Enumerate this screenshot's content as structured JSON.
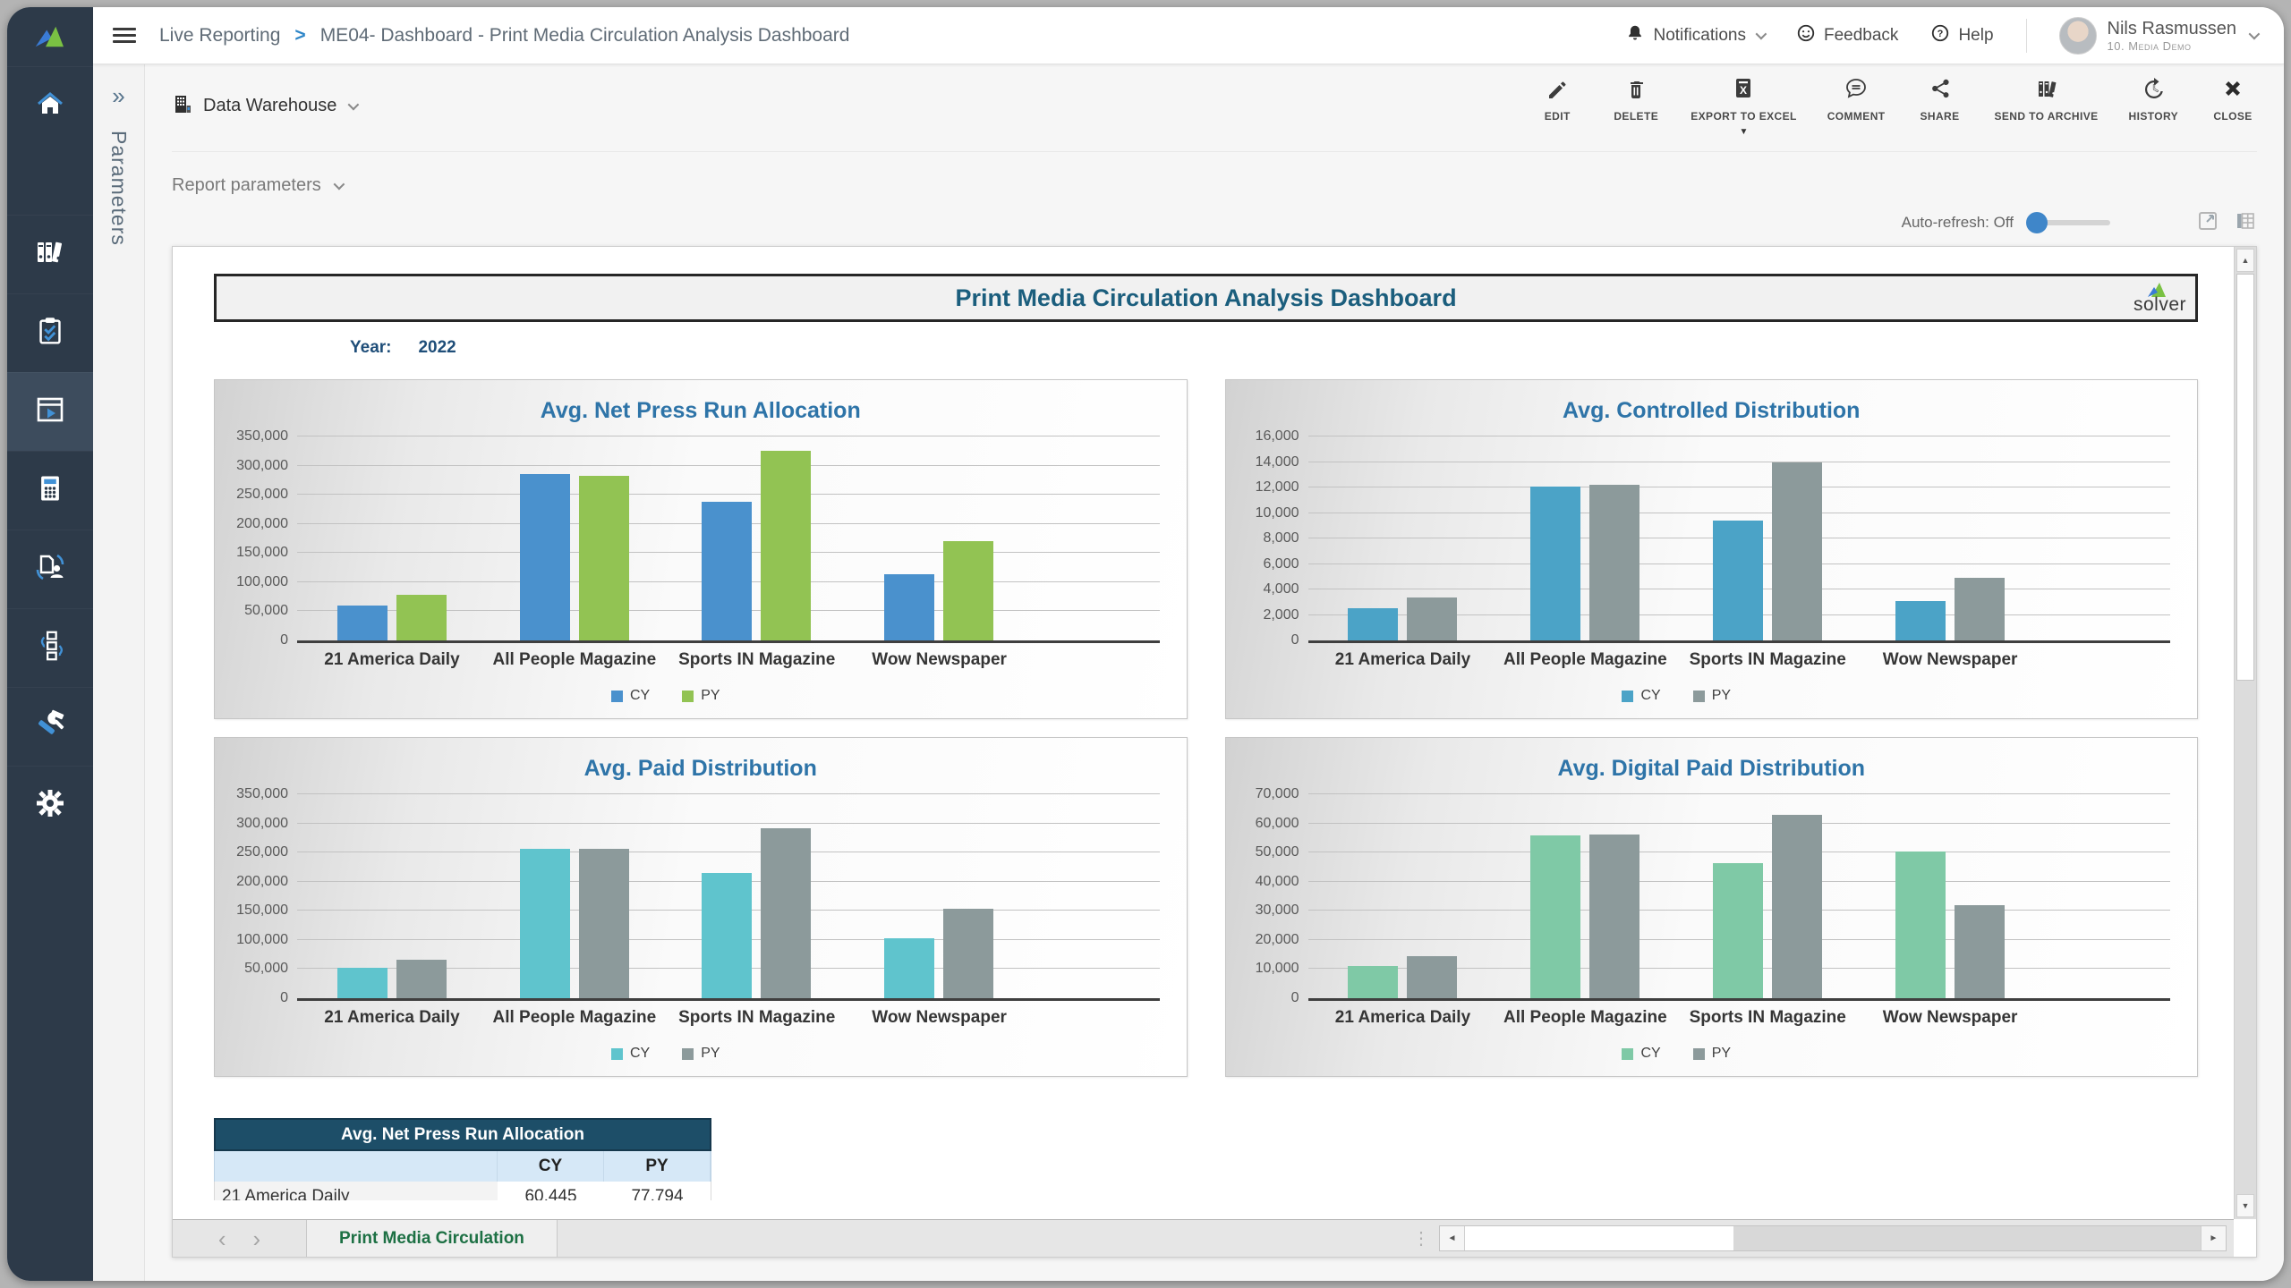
{
  "colors": {
    "sidebar_bg": "#2d3a49",
    "accent_blue": "#3f86c9",
    "dashboard_title": "#1b5e7d",
    "chart_title": "#2e74a8",
    "table_header_bg": "#1d4e68",
    "table_subheader_bg": "#d6e8f7",
    "sheet_tab_green": "#1d7044"
  },
  "topbar": {
    "breadcrumb": {
      "section": "Live Reporting",
      "separator": ">",
      "title": "ME04- Dashboard - Print Media Circulation Analysis Dashboard"
    },
    "notifications_label": "Notifications",
    "feedback_label": "Feedback",
    "help_label": "Help",
    "user_name": "Nils Rasmussen",
    "user_company": "10. Media Demo"
  },
  "sidebar": {
    "items": [
      {
        "icon": "home-icon"
      },
      {
        "icon": "binders-icon"
      },
      {
        "icon": "clipboard-check-icon"
      },
      {
        "icon": "live-reporting-icon",
        "active": true
      },
      {
        "icon": "calculator-icon"
      },
      {
        "icon": "document-user-icon"
      },
      {
        "icon": "workflow-icon"
      },
      {
        "icon": "tools-icon"
      },
      {
        "icon": "settings-gear-icon"
      }
    ]
  },
  "parameters_panel": {
    "expand_glyph": "»",
    "label": "Parameters"
  },
  "action_bar": {
    "source_label": "Data Warehouse",
    "actions": [
      {
        "label": "EDIT",
        "icon": "pencil-icon"
      },
      {
        "label": "DELETE",
        "icon": "trash-icon"
      },
      {
        "label": "EXPORT TO EXCEL",
        "icon": "excel-export-icon",
        "has_dropdown": true
      },
      {
        "label": "COMMENT",
        "icon": "comment-icon"
      },
      {
        "label": "SHARE",
        "icon": "share-icon"
      },
      {
        "label": "SEND TO ARCHIVE",
        "icon": "archive-icon"
      },
      {
        "label": "HISTORY",
        "icon": "history-icon"
      },
      {
        "label": "CLOSE",
        "icon": "close-icon"
      }
    ]
  },
  "report_controls": {
    "report_parameters_label": "Report parameters",
    "auto_refresh_label": "Auto-refresh: Off"
  },
  "report": {
    "title": "Print Media Circulation Analysis Dashboard",
    "logo_text": "solver",
    "year_label": "Year:",
    "year_value": "2022",
    "sheet_tab": "Print Media Circulation"
  },
  "summary_table": {
    "title": "Avg. Net Press Run Allocation",
    "columns": [
      "CY",
      "PY"
    ],
    "rows": [
      {
        "label": "21 America Daily",
        "cy": "60,445",
        "py": "77,794"
      }
    ]
  },
  "chart_data": [
    {
      "type": "bar",
      "title": "Avg. Net Press Run Allocation",
      "categories": [
        "21 America Daily",
        "All People Magazine",
        "Sports IN Magazine",
        "Wow Newspaper"
      ],
      "series": [
        {
          "name": "CY",
          "color": "#4a91cd",
          "values": [
            60445,
            285000,
            238000,
            113000
          ]
        },
        {
          "name": "PY",
          "color": "#92c353",
          "values": [
            77794,
            282000,
            325000,
            170000
          ]
        }
      ],
      "ylim": [
        0,
        350000
      ],
      "ytick": 50000,
      "grid": true,
      "legend_position": "bottom"
    },
    {
      "type": "bar",
      "title": "Avg. Controlled Distribution",
      "categories": [
        "21 America Daily",
        "All People Magazine",
        "Sports IN Magazine",
        "Wow Newspaper"
      ],
      "series": [
        {
          "name": "CY",
          "color": "#4ba3c7",
          "values": [
            2500,
            12100,
            9400,
            3100
          ]
        },
        {
          "name": "PY",
          "color": "#8c9a9b",
          "values": [
            3400,
            12200,
            14000,
            4900
          ]
        }
      ],
      "ylim": [
        0,
        16000
      ],
      "ytick": 2000,
      "grid": true,
      "legend_position": "bottom"
    },
    {
      "type": "bar",
      "title": "Avg. Paid Distribution",
      "categories": [
        "21 America Daily",
        "All People Magazine",
        "Sports IN Magazine",
        "Wow Newspaper"
      ],
      "series": [
        {
          "name": "CY",
          "color": "#5fc4cd",
          "values": [
            52000,
            257000,
            215000,
            103000
          ]
        },
        {
          "name": "PY",
          "color": "#8c9a9b",
          "values": [
            66000,
            256000,
            292000,
            153000
          ]
        }
      ],
      "ylim": [
        0,
        350000
      ],
      "ytick": 50000,
      "grid": true,
      "legend_position": "bottom"
    },
    {
      "type": "bar",
      "title": "Avg. Digital Paid Distribution",
      "categories": [
        "21 America Daily",
        "All People Magazine",
        "Sports IN Magazine",
        "Wow Newspaper"
      ],
      "series": [
        {
          "name": "CY",
          "color": "#7fc9a6",
          "values": [
            11000,
            56000,
            46500,
            50500
          ]
        },
        {
          "name": "PY",
          "color": "#8c9a9b",
          "values": [
            14500,
            56300,
            63000,
            32000
          ]
        }
      ],
      "ylim": [
        0,
        70000
      ],
      "ytick": 10000,
      "grid": true,
      "legend_position": "bottom"
    }
  ]
}
